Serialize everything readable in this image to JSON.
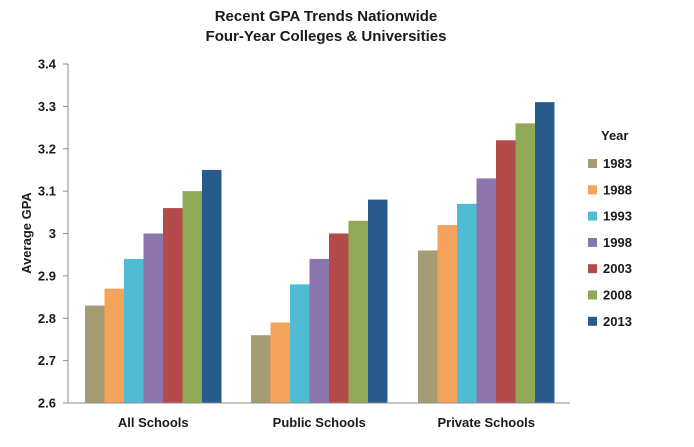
{
  "chart_data": {
    "type": "bar",
    "title": "Recent GPA Trends Nationwide",
    "subtitle": "Four-Year Colleges & Universities",
    "xlabel": "",
    "ylabel": "Average GPA",
    "ylim": [
      2.6,
      3.4
    ],
    "yticks": [
      "2.6",
      "2.7",
      "2.8",
      "2.9",
      "3",
      "3.1",
      "3.2",
      "3.3",
      "3.4"
    ],
    "categories": [
      "All Schools",
      "Public Schools",
      "Private Schools"
    ],
    "legend_title": "Year",
    "legend_position": "right",
    "grid": false,
    "series": [
      {
        "name": "1983",
        "color": "#a59c74",
        "values": [
          2.83,
          2.76,
          2.96
        ]
      },
      {
        "name": "1988",
        "color": "#f5a25d",
        "values": [
          2.87,
          2.79,
          3.02
        ]
      },
      {
        "name": "1993",
        "color": "#4fbcd3",
        "values": [
          2.94,
          2.88,
          3.07
        ]
      },
      {
        "name": "1998",
        "color": "#8c74ad",
        "values": [
          3.0,
          2.94,
          3.13
        ]
      },
      {
        "name": "2003",
        "color": "#b44a4a",
        "values": [
          3.06,
          3.0,
          3.22
        ]
      },
      {
        "name": "2008",
        "color": "#8fa957",
        "values": [
          3.1,
          3.03,
          3.26
        ]
      },
      {
        "name": "2013",
        "color": "#285b8c",
        "values": [
          3.15,
          3.08,
          3.31
        ]
      }
    ]
  }
}
